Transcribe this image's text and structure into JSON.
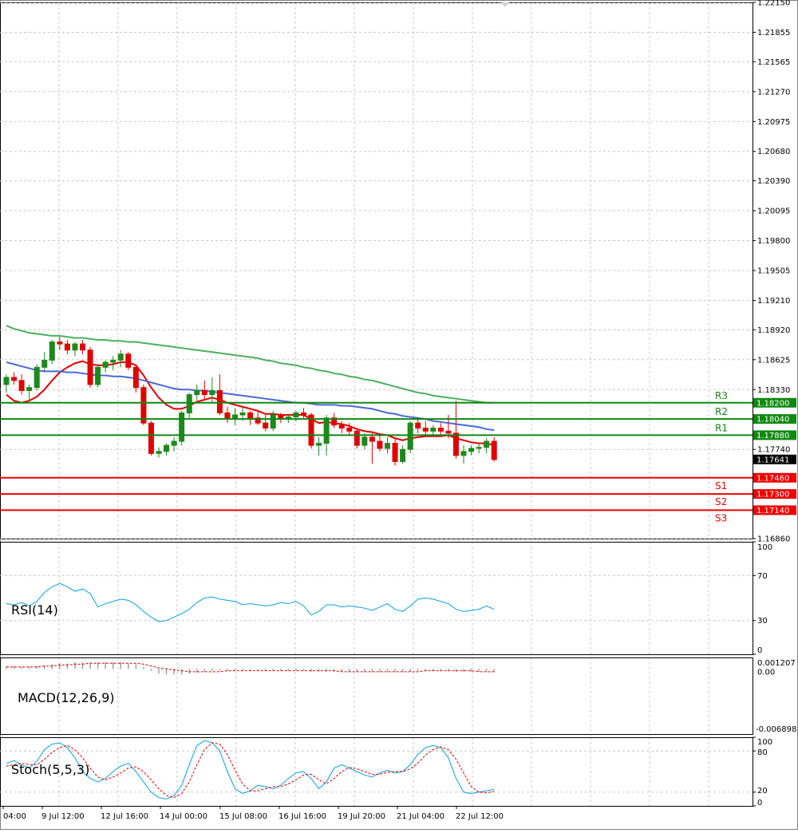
{
  "colors": {
    "grid": "#c8c8c8",
    "axis": "#000000",
    "bull": "#1b8a1b",
    "bear": "#e00000",
    "ma_fast": "#e00000",
    "ma_mid": "#4a68d8",
    "ma_slow": "#4caf60",
    "resistance": "#118811",
    "support": "#ee0000",
    "current_price_bg": "#000000",
    "indicator": "#0a9fe0",
    "signal": "#e00000"
  },
  "chart_data": [
    {
      "type": "candlestick",
      "panel": "price",
      "ylim": [
        1.1686,
        1.2215
      ],
      "yticks": [
        "1.22150",
        "1.21855",
        "1.21565",
        "1.21270",
        "1.20975",
        "1.20680",
        "1.20390",
        "1.20095",
        "1.19800",
        "1.19505",
        "1.19210",
        "1.18920",
        "1.18625",
        "1.18330",
        "1.17740",
        "1.16860"
      ],
      "current_price": "1.17641",
      "candles": [
        [
          1.1838,
          1.1848,
          1.183,
          1.1845
        ],
        [
          1.1845,
          1.185,
          1.1838,
          1.1842
        ],
        [
          1.1842,
          1.1848,
          1.1828,
          1.1832
        ],
        [
          1.1832,
          1.1838,
          1.1822,
          1.1835
        ],
        [
          1.1835,
          1.1858,
          1.1832,
          1.1855
        ],
        [
          1.1855,
          1.187,
          1.185,
          1.1862
        ],
        [
          1.1862,
          1.1882,
          1.1858,
          1.188
        ],
        [
          1.188,
          1.1885,
          1.1872,
          1.1878
        ],
        [
          1.1878,
          1.1882,
          1.1868,
          1.1872
        ],
        [
          1.1872,
          1.188,
          1.1866,
          1.1878
        ],
        [
          1.1878,
          1.1882,
          1.1868,
          1.1872
        ],
        [
          1.1872,
          1.1875,
          1.1835,
          1.1838
        ],
        [
          1.1838,
          1.1858,
          1.1835,
          1.1855
        ],
        [
          1.1855,
          1.1862,
          1.185,
          1.186
        ],
        [
          1.186,
          1.1866,
          1.1852,
          1.1862
        ],
        [
          1.1862,
          1.1872,
          1.1855,
          1.1868
        ],
        [
          1.1868,
          1.187,
          1.1852,
          1.1855
        ],
        [
          1.1855,
          1.1858,
          1.183,
          1.1835
        ],
        [
          1.1835,
          1.1838,
          1.1798,
          1.18
        ],
        [
          1.18,
          1.1802,
          1.1768,
          1.177
        ],
        [
          1.177,
          1.1776,
          1.1766,
          1.1772
        ],
        [
          1.1772,
          1.178,
          1.1768,
          1.1778
        ],
        [
          1.1778,
          1.1786,
          1.1772,
          1.1782
        ],
        [
          1.1782,
          1.1812,
          1.1778,
          1.181
        ],
        [
          1.181,
          1.183,
          1.1805,
          1.1828
        ],
        [
          1.1828,
          1.1838,
          1.1822,
          1.1832
        ],
        [
          1.1832,
          1.1842,
          1.1822,
          1.1828
        ],
        [
          1.1828,
          1.1845,
          1.182,
          1.1832
        ],
        [
          1.1832,
          1.1848,
          1.1808,
          1.181
        ],
        [
          1.181,
          1.1816,
          1.18,
          1.1805
        ],
        [
          1.1805,
          1.1815,
          1.1798,
          1.1808
        ],
        [
          1.1808,
          1.1815,
          1.1802,
          1.181
        ],
        [
          1.181,
          1.1812,
          1.1798,
          1.1805
        ],
        [
          1.1805,
          1.1812,
          1.1798,
          1.18
        ],
        [
          1.18,
          1.1808,
          1.1792,
          1.1795
        ],
        [
          1.1795,
          1.1812,
          1.1792,
          1.1808
        ],
        [
          1.1808,
          1.181,
          1.18,
          1.1805
        ],
        [
          1.1805,
          1.1808,
          1.18,
          1.1806
        ],
        [
          1.1806,
          1.1812,
          1.1802,
          1.181
        ],
        [
          1.181,
          1.1815,
          1.1805,
          1.1808
        ],
        [
          1.1808,
          1.181,
          1.1775,
          1.1778
        ],
        [
          1.1778,
          1.1786,
          1.1768,
          1.178
        ],
        [
          1.178,
          1.1808,
          1.1768,
          1.1805
        ],
        [
          1.1805,
          1.181,
          1.1795,
          1.1798
        ],
        [
          1.1798,
          1.1802,
          1.179,
          1.1795
        ],
        [
          1.1795,
          1.18,
          1.1788,
          1.1792
        ],
        [
          1.1792,
          1.1795,
          1.1775,
          1.1778
        ],
        [
          1.1778,
          1.179,
          1.1774,
          1.1786
        ],
        [
          1.1786,
          1.179,
          1.176,
          1.1782
        ],
        [
          1.1782,
          1.1788,
          1.1772,
          1.1775
        ],
        [
          1.1775,
          1.1786,
          1.177,
          1.178
        ],
        [
          1.178,
          1.1784,
          1.1758,
          1.1762
        ],
        [
          1.1762,
          1.1778,
          1.176,
          1.1774
        ],
        [
          1.1774,
          1.1802,
          1.177,
          1.18
        ],
        [
          1.18,
          1.1805,
          1.179,
          1.1795
        ],
        [
          1.1795,
          1.1802,
          1.1788,
          1.1792
        ],
        [
          1.1792,
          1.1798,
          1.1788,
          1.1795
        ],
        [
          1.1795,
          1.18,
          1.1788,
          1.1792
        ],
        [
          1.1792,
          1.1808,
          1.1785,
          1.179
        ],
        [
          1.179,
          1.1822,
          1.1765,
          1.1768
        ],
        [
          1.1768,
          1.1778,
          1.176,
          1.1772
        ],
        [
          1.1772,
          1.1778,
          1.1768,
          1.1775
        ],
        [
          1.1775,
          1.178,
          1.177,
          1.1776
        ],
        [
          1.1776,
          1.1785,
          1.177,
          1.1782
        ],
        [
          1.1782,
          1.1786,
          1.1762,
          1.1764
        ]
      ],
      "series": [
        {
          "values": [
            1.1828,
            1.1822,
            1.182,
            1.1822,
            1.1826,
            1.1833,
            1.1842,
            1.185,
            1.1855,
            1.1859,
            1.1861,
            1.1858,
            1.1857,
            1.1857,
            1.1858,
            1.186,
            1.186,
            1.1857,
            1.1847,
            1.1835,
            1.1825,
            1.1818,
            1.1814,
            1.1814,
            1.1817,
            1.1821,
            1.1823,
            1.1825,
            1.1823,
            1.182,
            1.1818,
            1.1816,
            1.1814,
            1.1812,
            1.1809,
            1.1809,
            1.1808,
            1.1808,
            1.1808,
            1.1808,
            1.1804,
            1.18,
            1.1801,
            1.18,
            1.1799,
            1.1797,
            1.1794,
            1.1792,
            1.1791,
            1.1789,
            1.1788,
            1.1785,
            1.1783,
            1.1785,
            1.1786,
            1.1787,
            1.1787,
            1.1787,
            1.1788,
            1.1785,
            1.1783,
            1.1781,
            1.178,
            1.178,
            1.1778
          ]
        },
        {
          "values": [
            1.186,
            1.1858,
            1.1856,
            1.1854,
            1.1852,
            1.1851,
            1.1851,
            1.1851,
            1.185,
            1.185,
            1.1849,
            1.1848,
            1.1847,
            1.1847,
            1.1846,
            1.1846,
            1.1845,
            1.1844,
            1.1842,
            1.184,
            1.1838,
            1.1836,
            1.1834,
            1.1833,
            1.1833,
            1.1832,
            1.1832,
            1.1831,
            1.183,
            1.1829,
            1.1828,
            1.1827,
            1.1826,
            1.1825,
            1.1824,
            1.1823,
            1.1822,
            1.1821,
            1.182,
            1.182,
            1.1819,
            1.1818,
            1.1818,
            1.1818,
            1.1817,
            1.1817,
            1.1816,
            1.1815,
            1.1814,
            1.1812,
            1.181,
            1.1809,
            1.1807,
            1.1806,
            1.1805,
            1.1804,
            1.1802,
            1.1801,
            1.18,
            1.1799,
            1.1798,
            1.1797,
            1.1796,
            1.1794,
            1.1793
          ]
        },
        {
          "values": [
            1.1896,
            1.1893,
            1.1891,
            1.1889,
            1.1888,
            1.1887,
            1.1886,
            1.1886,
            1.1885,
            1.1884,
            1.1884,
            1.1883,
            1.1882,
            1.1882,
            1.1881,
            1.1881,
            1.188,
            1.188,
            1.1879,
            1.1878,
            1.1877,
            1.1876,
            1.1875,
            1.1874,
            1.1873,
            1.1872,
            1.1871,
            1.187,
            1.1869,
            1.1868,
            1.1867,
            1.1866,
            1.1865,
            1.1864,
            1.1862,
            1.1861,
            1.1859,
            1.1858,
            1.1857,
            1.1855,
            1.1854,
            1.1852,
            1.1851,
            1.1849,
            1.1848,
            1.1846,
            1.1845,
            1.1843,
            1.1842,
            1.184,
            1.1838,
            1.1836,
            1.1834,
            1.1832,
            1.183,
            1.1829,
            1.1827,
            1.1826,
            1.1825,
            1.1824,
            1.1823,
            1.1822,
            1.1821,
            1.182,
            1.182
          ]
        }
      ],
      "levels": [
        {
          "label": "R3",
          "price": "1.18200",
          "value": 1.182,
          "kind": "resistance"
        },
        {
          "label": "R2",
          "price": "1.18040",
          "value": 1.1804,
          "kind": "resistance"
        },
        {
          "label": "R1",
          "price": "1.17880",
          "value": 1.1788,
          "kind": "resistance"
        },
        {
          "label": "S1",
          "price": "1.17460",
          "value": 1.1746,
          "kind": "support"
        },
        {
          "label": "S2",
          "price": "1.17300",
          "value": 1.173,
          "kind": "support"
        },
        {
          "label": "S3",
          "price": "1.17140",
          "value": 1.1714,
          "kind": "support"
        }
      ]
    },
    {
      "type": "line",
      "panel": "rsi",
      "title": "RSI(14)",
      "ylim": [
        0,
        100
      ],
      "yticks": [
        "100",
        "70",
        "30",
        "0"
      ],
      "levels": [
        70,
        30
      ],
      "series": [
        {
          "values": [
            45,
            44,
            46,
            43,
            47,
            55,
            60,
            63,
            60,
            56,
            58,
            54,
            42,
            45,
            47,
            49,
            48,
            44,
            38,
            33,
            29,
            30,
            33,
            36,
            40,
            46,
            50,
            51,
            49,
            48,
            47,
            44,
            45,
            44,
            43,
            44,
            46,
            45,
            47,
            43,
            35,
            38,
            44,
            44,
            42,
            43,
            42,
            41,
            39,
            42,
            45,
            40,
            38,
            43,
            49,
            50,
            49,
            47,
            45,
            40,
            38,
            39,
            40,
            43,
            40
          ]
        }
      ]
    },
    {
      "type": "bar",
      "panel": "macd",
      "title": "MACD(12,26,9)",
      "ylim": [
        -0.006898,
        0.001207
      ],
      "yticks": [
        "0.001207",
        "0.00",
        "-0.006898"
      ],
      "values": [
        0.0003,
        0.0003,
        0.0002,
        0.0002,
        0.0003,
        0.0004,
        0.0005,
        0.0006,
        0.0006,
        0.0007,
        0.0007,
        0.0007,
        0.0007,
        0.0007,
        0.0007,
        0.0007,
        0.0006,
        0.0005,
        0.0002,
        -0.0002,
        -0.0005,
        -0.0006,
        -0.0006,
        -0.0006,
        -0.0005,
        -0.0004,
        -0.0003,
        -0.0002,
        -0.0002,
        -0.0002,
        -0.0002,
        -0.0002,
        -0.0002,
        -0.0002,
        -0.0002,
        -0.0002,
        -0.0002,
        -0.0002,
        -0.0002,
        -0.0002,
        -0.0003,
        -0.0003,
        -0.0003,
        -0.0003,
        -0.0003,
        -0.0003,
        -0.0003,
        -0.0003,
        -0.0003,
        -0.0003,
        -0.0003,
        -0.0003,
        -0.0003,
        -0.0003,
        -0.0002,
        -0.0002,
        -0.0002,
        -0.0002,
        -0.0002,
        -0.0003,
        -0.0003,
        -0.0003,
        -0.0003,
        -0.0003,
        -0.0003
      ],
      "signal": [
        0.0002,
        0.0002,
        0.0002,
        0.0002,
        0.0002,
        0.0003,
        0.0003,
        0.0004,
        0.0004,
        0.0005,
        0.0005,
        0.0006,
        0.0006,
        0.0006,
        0.0006,
        0.0006,
        0.0006,
        0.0006,
        0.0005,
        0.0003,
        0.0001,
        0.0,
        -0.0001,
        -0.0002,
        -0.0003,
        -0.0003,
        -0.0003,
        -0.0003,
        -0.0003,
        -0.0002,
        -0.0002,
        -0.0002,
        -0.0002,
        -0.0002,
        -0.0002,
        -0.0002,
        -0.0002,
        -0.0002,
        -0.0002,
        -0.0002,
        -0.0002,
        -0.0002,
        -0.0002,
        -0.0002,
        -0.0003,
        -0.0003,
        -0.0003,
        -0.0003,
        -0.0003,
        -0.0003,
        -0.0003,
        -0.0003,
        -0.0003,
        -0.0003,
        -0.0003,
        -0.0002,
        -0.0002,
        -0.0002,
        -0.0002,
        -0.0002,
        -0.0002,
        -0.0002,
        -0.0003,
        -0.0003,
        -0.0003
      ]
    },
    {
      "type": "line",
      "panel": "stoch",
      "title": "Stoch(5,5,3)",
      "ylim": [
        0,
        100
      ],
      "yticks": [
        "100",
        "80",
        "20",
        "0"
      ],
      "levels": [
        80,
        20
      ],
      "series": [
        {
          "values": [
            62,
            66,
            60,
            55,
            65,
            82,
            90,
            92,
            85,
            70,
            50,
            40,
            35,
            40,
            50,
            58,
            62,
            50,
            35,
            20,
            12,
            10,
            15,
            30,
            60,
            88,
            95,
            92,
            80,
            50,
            25,
            18,
            22,
            30,
            28,
            25,
            30,
            40,
            48,
            50,
            40,
            25,
            35,
            55,
            60,
            55,
            50,
            45,
            42,
            48,
            52,
            48,
            50,
            60,
            75,
            85,
            88,
            85,
            70,
            40,
            20,
            18,
            20,
            22,
            24
          ]
        },
        {
          "values": [
            58,
            60,
            62,
            60,
            60,
            68,
            78,
            85,
            88,
            82,
            70,
            55,
            42,
            38,
            42,
            48,
            55,
            57,
            50,
            38,
            25,
            15,
            12,
            18,
            35,
            60,
            82,
            92,
            90,
            75,
            52,
            32,
            22,
            22,
            25,
            28,
            28,
            32,
            38,
            45,
            46,
            38,
            32,
            40,
            50,
            56,
            54,
            50,
            46,
            46,
            49,
            50,
            50,
            54,
            62,
            74,
            82,
            86,
            82,
            68,
            48,
            28,
            20,
            19,
            21
          ]
        }
      ]
    },
    {
      "type": "axis",
      "panel": "time",
      "tick_labels": [
        "04:00",
        "9 Jul 12:00",
        "12 Jul 16:00",
        "14 Jul 00:00",
        "15 Jul 08:00",
        "16 Jul 16:00",
        "19 Jul 20:00",
        "21 Jul 04:00",
        "22 Jul 12:00"
      ]
    }
  ]
}
